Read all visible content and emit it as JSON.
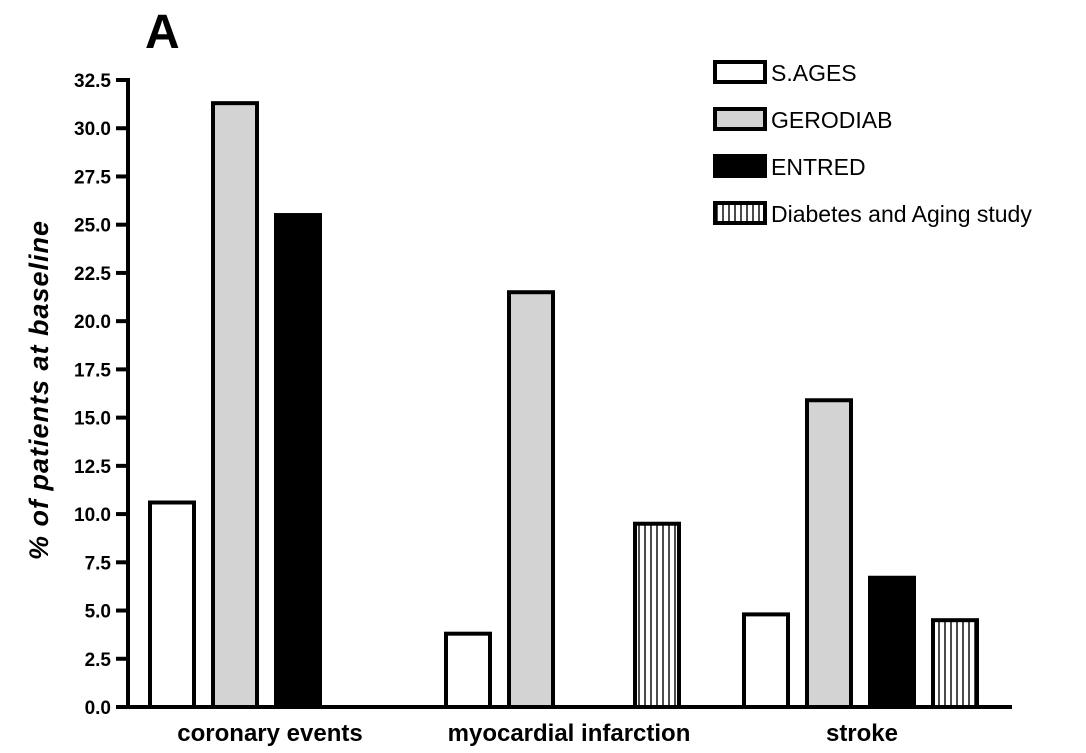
{
  "chart_data": {
    "type": "bar",
    "panel_label": "A",
    "title": "",
    "xlabel": "",
    "ylabel": "% of patients at baseline",
    "ylim": [
      0,
      32.5
    ],
    "yticks": [
      0.0,
      2.5,
      5.0,
      7.5,
      10.0,
      12.5,
      15.0,
      17.5,
      20.0,
      22.5,
      25.0,
      27.5,
      30.0,
      32.5
    ],
    "ytick_labels": [
      "0.0",
      "2.5",
      "5.0",
      "7.5",
      "10.0",
      "12.5",
      "15.0",
      "17.5",
      "20.0",
      "22.5",
      "25.0",
      "27.5",
      "30.0",
      "32.5"
    ],
    "categories": [
      "coronary events",
      "myocardial infarction",
      "stroke"
    ],
    "grid": false,
    "legend_position": "top-right",
    "series": [
      {
        "name": "S.AGES",
        "values": [
          10.6,
          3.8,
          4.8
        ],
        "fill": "#ffffff",
        "pattern": "none"
      },
      {
        "name": "GERODIAB",
        "values": [
          31.3,
          21.5,
          15.9
        ],
        "fill": "#d3d3d3",
        "pattern": "none"
      },
      {
        "name": "ENTRED",
        "values": [
          25.5,
          null,
          6.7
        ],
        "fill": "#000000",
        "pattern": "none"
      },
      {
        "name": "Diabetes and Aging study",
        "values": [
          null,
          9.5,
          4.5
        ],
        "fill": "#ffffff",
        "pattern": "vertical-lines"
      }
    ]
  }
}
